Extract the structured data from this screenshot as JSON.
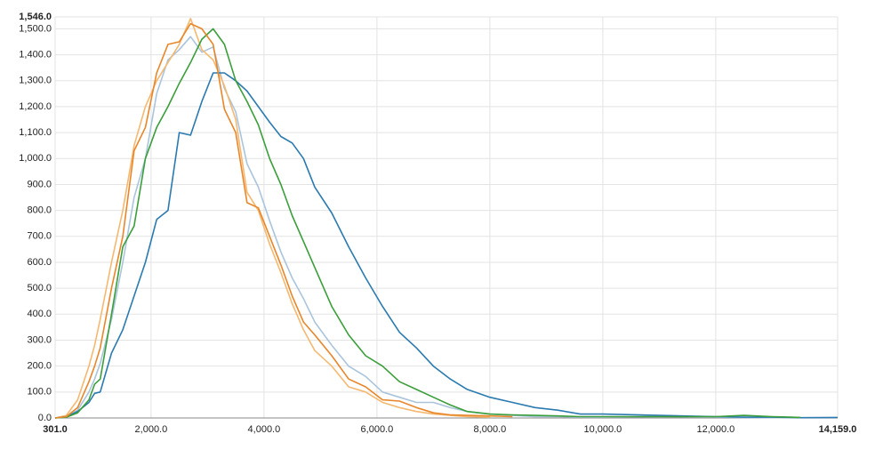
{
  "chart_data": {
    "type": "line",
    "x": [
      301,
      500,
      700,
      900,
      1000,
      1100,
      1300,
      1500,
      1700,
      1900,
      2100,
      2300,
      2500,
      2700,
      2900,
      3100,
      3300,
      3500,
      3700,
      3900,
      4100,
      4300,
      4500,
      4700,
      4900,
      5200,
      5500,
      5800,
      6100,
      6400,
      6700,
      7000,
      7300,
      7600,
      8000,
      8400,
      8800,
      9200,
      9600,
      10000,
      11000,
      12000,
      12500,
      13000,
      13500,
      14159
    ],
    "series": [
      {
        "color": "#aac4dc",
        "values": [
          0,
          5,
          30,
          100,
          150,
          210,
          380,
          600,
          850,
          1000,
          1250,
          1380,
          1420,
          1470,
          1410,
          1430,
          1270,
          1180,
          980,
          890,
          760,
          640,
          540,
          460,
          370,
          280,
          200,
          160,
          100,
          80,
          60,
          60,
          40,
          25,
          15,
          10,
          5,
          5,
          3,
          3,
          5,
          3,
          2,
          1,
          1,
          null
        ]
      },
      {
        "color": "#f5b870",
        "values": [
          0,
          10,
          70,
          200,
          280,
          380,
          600,
          800,
          1050,
          1200,
          1300,
          1370,
          1440,
          1540,
          1420,
          1380,
          1280,
          1150,
          870,
          800,
          670,
          560,
          440,
          340,
          260,
          200,
          120,
          100,
          60,
          40,
          25,
          15,
          10,
          5,
          3,
          null,
          null,
          null,
          null,
          null,
          null,
          null,
          null,
          null,
          null,
          null
        ]
      },
      {
        "color": "#2a7ab0",
        "values": [
          0,
          5,
          25,
          60,
          95,
          100,
          250,
          340,
          470,
          600,
          765,
          800,
          1100,
          1090,
          1220,
          1330,
          1330,
          1300,
          1260,
          1200,
          1140,
          1085,
          1060,
          1000,
          890,
          790,
          660,
          540,
          430,
          330,
          270,
          200,
          150,
          110,
          80,
          60,
          40,
          30,
          15,
          15,
          10,
          5,
          3,
          3,
          1,
          2
        ]
      },
      {
        "color": "#3a9e3a",
        "values": [
          0,
          3,
          20,
          70,
          130,
          150,
          400,
          660,
          740,
          1000,
          1120,
          1200,
          1290,
          1370,
          1460,
          1500,
          1440,
          1300,
          1220,
          1130,
          1000,
          900,
          780,
          680,
          580,
          430,
          320,
          240,
          200,
          140,
          110,
          80,
          50,
          25,
          15,
          12,
          10,
          8,
          5,
          5,
          5,
          5,
          10,
          5,
          2,
          null
        ]
      },
      {
        "color": "#e8862a",
        "values": [
          0,
          5,
          40,
          140,
          200,
          270,
          500,
          700,
          1030,
          1120,
          1330,
          1440,
          1450,
          1520,
          1500,
          1440,
          1190,
          1100,
          830,
          810,
          700,
          590,
          470,
          370,
          320,
          240,
          150,
          120,
          70,
          65,
          40,
          20,
          12,
          10,
          8,
          5,
          null,
          null,
          null,
          null,
          null,
          null,
          null,
          null,
          null,
          null
        ]
      }
    ],
    "xlim": [
      301,
      14159
    ],
    "xticks": [
      {
        "value": 301,
        "label": "301.0"
      },
      {
        "value": 2000,
        "label": "2,000.0"
      },
      {
        "value": 4000,
        "label": "4,000.0"
      },
      {
        "value": 6000,
        "label": "6,000.0"
      },
      {
        "value": 8000,
        "label": "8,000.0"
      },
      {
        "value": 10000,
        "label": "10,000.0"
      },
      {
        "value": 12000,
        "label": "12,000.0"
      },
      {
        "value": 14159,
        "label": "14,159.0"
      }
    ],
    "ylim": [
      0,
      1546
    ],
    "yticks": [
      {
        "value": 0,
        "label": "0.0"
      },
      {
        "value": 100,
        "label": "100.0"
      },
      {
        "value": 200,
        "label": "200.0"
      },
      {
        "value": 300,
        "label": "300.0"
      },
      {
        "value": 400,
        "label": "400.0"
      },
      {
        "value": 500,
        "label": "500.0"
      },
      {
        "value": 600,
        "label": "600.0"
      },
      {
        "value": 700,
        "label": "700.0"
      },
      {
        "value": 800,
        "label": "800.0"
      },
      {
        "value": 900,
        "label": "900.0"
      },
      {
        "value": 1000,
        "label": "1,000.0"
      },
      {
        "value": 1100,
        "label": "1,100.0"
      },
      {
        "value": 1200,
        "label": "1,200.0"
      },
      {
        "value": 1300,
        "label": "1,300.0"
      },
      {
        "value": 1400,
        "label": "1,400.0"
      },
      {
        "value": 1500,
        "label": "1,500.0"
      },
      {
        "value": 1546,
        "label": "1,546.0"
      }
    ],
    "grid": true
  }
}
